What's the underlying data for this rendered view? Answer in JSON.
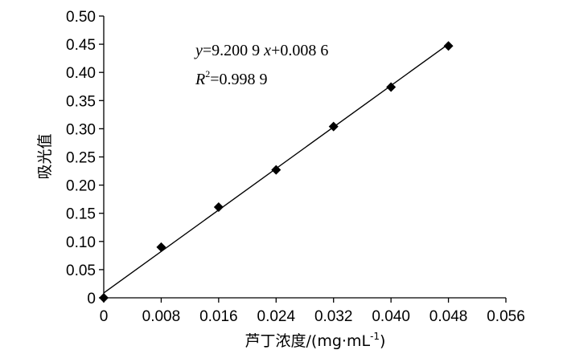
{
  "chart_data": {
    "type": "scatter",
    "xlabel_main": "芦丁浓度/(mg·mL",
    "xlabel_sup": "-1",
    "xlabel_end": ")",
    "ylabel": "吸光值",
    "x_ticks": [
      "0",
      "0.008",
      "0.016",
      "0.024",
      "0.032",
      "0.040",
      "0.048",
      "0.056"
    ],
    "y_ticks": [
      "0",
      "0.05",
      "0.10",
      "0.15",
      "0.20",
      "0.25",
      "0.30",
      "0.35",
      "0.40",
      "0.45",
      "0.50"
    ],
    "xlim": [
      0,
      0.056
    ],
    "ylim": [
      0,
      0.5
    ],
    "grid": false,
    "series": [
      {
        "points": [
          {
            "x": 0,
            "y": 0.0
          },
          {
            "x": 0.008,
            "y": 0.09
          },
          {
            "x": 0.016,
            "y": 0.161
          },
          {
            "x": 0.024,
            "y": 0.227
          },
          {
            "x": 0.032,
            "y": 0.304
          },
          {
            "x": 0.04,
            "y": 0.374
          },
          {
            "x": 0.048,
            "y": 0.447
          }
        ]
      }
    ],
    "trendline": {
      "slope": 9.2009,
      "intercept": 0.0086,
      "x_range": [
        0,
        0.048
      ]
    },
    "annotations": {
      "eq_y": "y",
      "eq_mid": "=9.200 9 ",
      "eq_x": "x",
      "eq_end": "+0.008 6",
      "r_main": "R",
      "r_sup": "2",
      "r_end": "=0.998 9"
    }
  }
}
